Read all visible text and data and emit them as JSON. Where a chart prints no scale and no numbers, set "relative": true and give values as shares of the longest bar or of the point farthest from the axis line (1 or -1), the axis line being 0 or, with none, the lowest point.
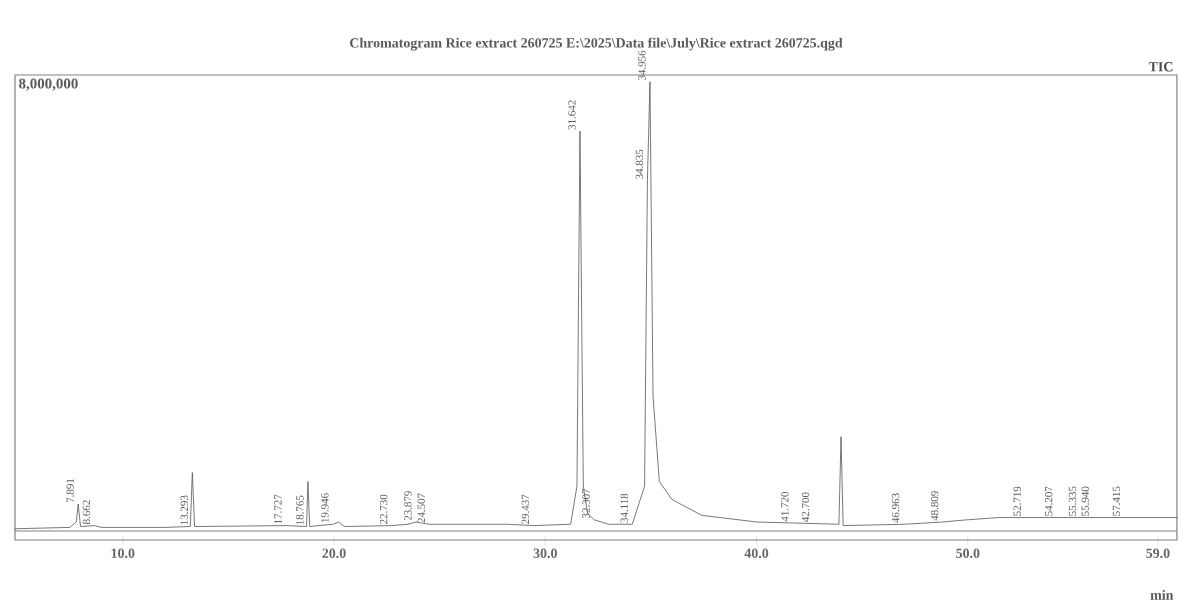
{
  "chart_data": {
    "type": "line",
    "title": "Chromatogram Rice extract 260725 E:\\2025\\Data file\\July\\Rice extract 260725.qgd",
    "xlabel": "min",
    "relative": true,
    "xlim": [
      4.9,
      59.9
    ],
    "xticks": [
      {
        "value": 10,
        "label": "10.0"
      },
      {
        "value": 20,
        "label": "20.0"
      },
      {
        "value": 30,
        "label": "30.0"
      },
      {
        "value": 40,
        "label": "40.0"
      },
      {
        "value": 50,
        "label": "50.0"
      },
      {
        "value": 59,
        "label": "59.0"
      }
    ],
    "series": [
      {
        "name": "TIC",
        "color": "#555555",
        "x": [
          4.9,
          7.5,
          7.8,
          7.891,
          8.0,
          8.662,
          9,
          12,
          13.2,
          13.293,
          13.4,
          17.727,
          18.7,
          18.765,
          18.85,
          19.946,
          20.2,
          20.5,
          22.73,
          23.5,
          23.879,
          24.507,
          27.4,
          28.2,
          29.437,
          31.2,
          31.5,
          31.642,
          31.8,
          32.0,
          32.307,
          33,
          34.118,
          34.7,
          34.835,
          34.956,
          35.1,
          35.4,
          36,
          37.4,
          40,
          43.9,
          44.0,
          44.1,
          47,
          48.8,
          50,
          51.5,
          59.9
        ],
        "values": [
          0.005,
          0.008,
          0.02,
          0.06,
          0.01,
          0.012,
          0.008,
          0.008,
          0.01,
          0.13,
          0.01,
          0.012,
          0.01,
          0.11,
          0.01,
          0.015,
          0.02,
          0.01,
          0.012,
          0.015,
          0.02,
          0.015,
          0.015,
          0.015,
          0.012,
          0.015,
          0.1,
          0.89,
          0.1,
          0.04,
          0.025,
          0.015,
          0.015,
          0.1,
          0.78,
          1.0,
          0.3,
          0.11,
          0.07,
          0.035,
          0.02,
          0.015,
          0.21,
          0.012,
          0.015,
          0.02,
          0.025,
          0.03,
          0.03
        ]
      }
    ],
    "annotations": [
      "8,000,000",
      {
        "text": "7.891",
        "x": 7.891,
        "y": 0.06
      },
      {
        "text": "8.662",
        "x": 8.662,
        "y": 0.012
      },
      {
        "text": "13.293",
        "x": 13.293,
        "y": 0.01
      },
      {
        "text": "17.727",
        "x": 17.727,
        "y": 0.012
      },
      {
        "text": "18.765",
        "x": 18.765,
        "y": 0.01
      },
      {
        "text": "19.946",
        "x": 19.946,
        "y": 0.015
      },
      {
        "text": "22.730",
        "x": 22.73,
        "y": 0.012
      },
      {
        "text": "23.879",
        "x": 23.879,
        "y": 0.02
      },
      {
        "text": "24.507",
        "x": 24.507,
        "y": 0.015
      },
      {
        "text": "29.437",
        "x": 29.437,
        "y": 0.012
      },
      {
        "text": "31.642",
        "x": 31.642,
        "y": 0.89
      },
      {
        "text": "32.307",
        "x": 32.307,
        "y": 0.025
      },
      {
        "text": "34.118",
        "x": 34.118,
        "y": 0.015
      },
      {
        "text": "34.835",
        "x": 34.835,
        "y": 0.78
      },
      {
        "text": "34.956",
        "x": 34.956,
        "y": 1.0
      },
      {
        "text": "41.720",
        "x": 41.72,
        "y": 0.018
      },
      {
        "text": "42.700",
        "x": 42.7,
        "y": 0.017
      },
      {
        "text": "46.963",
        "x": 46.963,
        "y": 0.015
      },
      {
        "text": "48.809",
        "x": 48.809,
        "y": 0.02
      },
      {
        "text": "52.719",
        "x": 52.719,
        "y": 0.03
      },
      {
        "text": "54.207",
        "x": 54.207,
        "y": 0.03
      },
      {
        "text": "55.335",
        "x": 55.335,
        "y": 0.03
      },
      {
        "text": "55.940",
        "x": 55.94,
        "y": 0.03
      },
      {
        "text": "57.415",
        "x": 57.415,
        "y": 0.03
      }
    ]
  }
}
